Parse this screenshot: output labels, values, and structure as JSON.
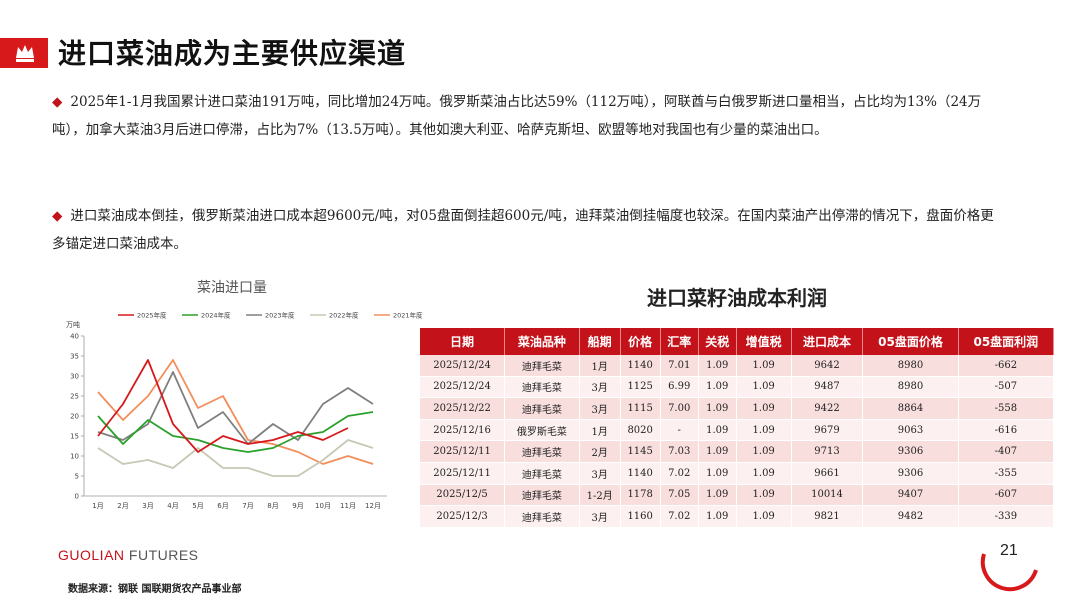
{
  "page": {
    "title": "进口菜油成为主要供应渠道",
    "page_number": "21",
    "brand_red": "GUOLIAN",
    "brand_grey": "FUTURES",
    "source": "数据来源：钢联  国联期货农产品事业部",
    "accent_color": "#c4121a"
  },
  "bullets": [
    "2025年1-1月我国累计进口菜油191万吨，同比增加24万吨。俄罗斯菜油占比达59%（112万吨），阿联酋与白俄罗斯进口量相当，占比均为13%（24万吨），加拿大菜油3月后进口停滞，占比为7%（13.5万吨）。其他如澳大利亚、哈萨克斯坦、欧盟等地对我国也有少量的菜油出口。",
    "进口菜油成本倒挂，俄罗斯菜油进口成本超9600元/吨，对05盘面倒挂超600元/吨，迪拜菜油倒挂幅度也较深。在国内菜油产出停滞的情况下，盘面价格更多锚定进口菜油成本。"
  ],
  "chart_data": {
    "type": "line",
    "title": "菜油进口量",
    "ylabel": "万吨",
    "ylim": [
      0,
      40
    ],
    "yticks": [
      0,
      5,
      10,
      15,
      20,
      25,
      30,
      35,
      40
    ],
    "categories": [
      "1月",
      "2月",
      "3月",
      "4月",
      "5月",
      "6月",
      "7月",
      "8月",
      "9月",
      "10月",
      "11月",
      "12月"
    ],
    "legend_position": "top",
    "grid": false,
    "series": [
      {
        "name": "2025年度",
        "color": "#d7191c",
        "values": [
          15,
          23,
          34,
          18,
          11,
          15,
          13,
          14,
          16,
          14,
          17,
          null
        ]
      },
      {
        "name": "2024年度",
        "color": "#2ca02c",
        "values": [
          20,
          13,
          19,
          15,
          14,
          12,
          11,
          12,
          15,
          16,
          20,
          21
        ]
      },
      {
        "name": "2023年度",
        "color": "#7f7f7f",
        "values": [
          16,
          14,
          18,
          31,
          17,
          21,
          13,
          18,
          14,
          23,
          27,
          23
        ]
      },
      {
        "name": "2022年度",
        "color": "#c8c8b4",
        "values": [
          12,
          8,
          9,
          7,
          12,
          7,
          7,
          5,
          5,
          9,
          14,
          12
        ]
      },
      {
        "name": "2021年度",
        "color": "#f28e5c",
        "values": [
          26,
          19,
          25,
          34,
          22,
          25,
          14,
          13,
          11,
          8,
          10,
          8
        ]
      }
    ]
  },
  "table": {
    "title": "进口菜籽油成本利润",
    "headers": [
      "日期",
      "菜油品种",
      "船期",
      "价格",
      "汇率",
      "关税",
      "增值税",
      "进口成本",
      "05盘面价格",
      "05盘面利润"
    ],
    "rows": [
      [
        "2025/12/24",
        "迪拜毛菜",
        "1月",
        "1140",
        "7.01",
        "1.09",
        "1.09",
        "9642",
        "8980",
        "-662"
      ],
      [
        "2025/12/24",
        "迪拜毛菜",
        "3月",
        "1125",
        "6.99",
        "1.09",
        "1.09",
        "9487",
        "8980",
        "-507"
      ],
      [
        "2025/12/22",
        "迪拜毛菜",
        "3月",
        "1115",
        "7.00",
        "1.09",
        "1.09",
        "9422",
        "8864",
        "-558"
      ],
      [
        "2025/12/16",
        "俄罗斯毛菜",
        "1月",
        "8020",
        "-",
        "1.09",
        "1.09",
        "9679",
        "9063",
        "-616"
      ],
      [
        "2025/12/11",
        "迪拜毛菜",
        "2月",
        "1145",
        "7.03",
        "1.09",
        "1.09",
        "9713",
        "9306",
        "-407"
      ],
      [
        "2025/12/11",
        "迪拜毛菜",
        "3月",
        "1140",
        "7.02",
        "1.09",
        "1.09",
        "9661",
        "9306",
        "-355"
      ],
      [
        "2025/12/5",
        "迪拜毛菜",
        "1-2月",
        "1178",
        "7.05",
        "1.09",
        "1.09",
        "10014",
        "9407",
        "-607"
      ],
      [
        "2025/12/3",
        "迪拜毛菜",
        "3月",
        "1160",
        "7.02",
        "1.09",
        "1.09",
        "9821",
        "9482",
        "-339"
      ]
    ]
  }
}
